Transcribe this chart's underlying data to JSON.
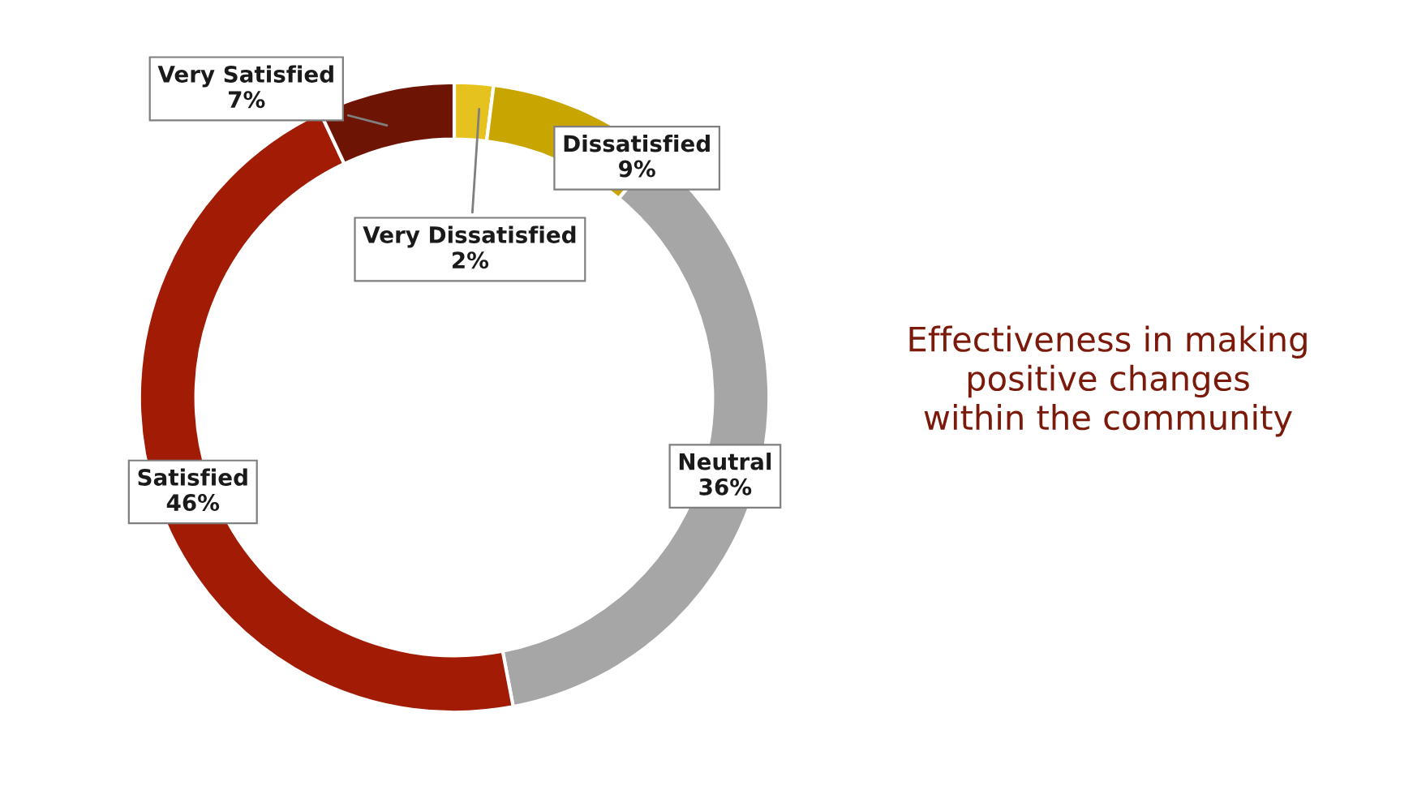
{
  "chart_data": {
    "type": "donut",
    "title": "Effectiveness in making\npositive changes\nwithin the community",
    "categories": [
      "Very Dissatisfied",
      "Dissatisfied",
      "Neutral",
      "Satisfied",
      "Very Satisfied"
    ],
    "values": [
      2,
      9,
      36,
      46,
      7
    ],
    "colors": [
      "#e6c21e",
      "#c9a500",
      "#a6a6a6",
      "#a11b05",
      "#6d1405"
    ],
    "value_labels": [
      "2%",
      "9%",
      "36%",
      "46%",
      "7%"
    ],
    "legend": false
  }
}
